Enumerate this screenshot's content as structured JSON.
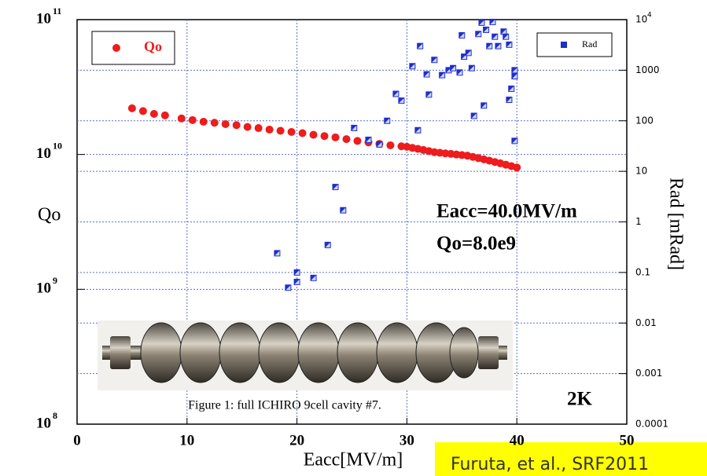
{
  "chart_data": {
    "type": "scatter",
    "xlabel": "Eacc[MV/m]",
    "ylabel": "Qo",
    "y2label": "Rad [mRad]",
    "caption": "Figure 1: full ICHIRO 9cell cavity #7.",
    "annotations": [
      "Eacc=40.0MV/m",
      "Qo=8.0e9",
      "2K"
    ],
    "source": "Furuta, et al., SRF2011",
    "xlim": [
      0,
      50
    ],
    "xticks": [
      0,
      10,
      20,
      30,
      40,
      50
    ],
    "ylim": [
      100000000,
      100000000000
    ],
    "ylog": true,
    "yticks": [
      {
        "value": 100000000,
        "label": "10",
        "sup": "8"
      },
      {
        "value": 1000000000,
        "label": "10",
        "sup": "9"
      },
      {
        "value": 10000000000,
        "label": "10",
        "sup": "10"
      },
      {
        "value": 100000000000,
        "label": "10",
        "sup": "11"
      }
    ],
    "y2lim": [
      0.0001,
      10000
    ],
    "y2log": true,
    "y2ticks": [
      0.0001,
      0.001,
      0.01,
      0.1,
      1,
      10,
      100,
      1000,
      {
        "value": 10000,
        "label": "10",
        "sup": "4"
      }
    ],
    "grid": true,
    "series": [
      {
        "name": "Qo",
        "color": "#ee1c1c",
        "marker": "circle",
        "x": [
          5,
          6,
          7,
          8,
          9.5,
          10.5,
          11.5,
          12.5,
          13.5,
          14.5,
          15.5,
          16.5,
          17.5,
          18.5,
          19.5,
          20.5,
          21.5,
          22.5,
          23.5,
          24.5,
          25.5,
          26.5,
          27.5,
          28.5,
          29.5,
          30,
          30.5,
          31,
          31.5,
          32,
          32.5,
          33,
          33.5,
          34,
          34.5,
          35,
          35.5,
          36,
          36.5,
          37,
          37.5,
          38,
          38.5,
          39,
          39.5,
          40
        ],
        "values": [
          22000000000,
          21000000000,
          20000000000,
          19500000000,
          18500000000,
          18000000000,
          17500000000,
          17200000000,
          16800000000,
          16500000000,
          16000000000,
          15700000000,
          15300000000,
          15000000000,
          14700000000,
          14400000000,
          14000000000,
          13700000000,
          13400000000,
          13000000000,
          12600000000,
          12300000000,
          12000000000,
          11700000000,
          11500000000,
          11400000000,
          11200000000,
          11000000000,
          10800000000,
          10600000000,
          10400000000,
          10300000000,
          10200000000,
          10100000000,
          10000000000,
          9900000000,
          9800000000,
          9600000000,
          9400000000,
          9200000000,
          9000000000,
          8800000000,
          8600000000,
          8400000000,
          8200000000,
          8000000000
        ]
      },
      {
        "name": "Rad",
        "color": "#1f2fc8",
        "marker": "square",
        "axis": "y2",
        "x": [
          18.2,
          19.2,
          20,
          20,
          21.5,
          22.8,
          23.5,
          24.2,
          25.2,
          26.5,
          27.5,
          28.2,
          29,
          29.5,
          30.5,
          31,
          31.2,
          31.8,
          32,
          32.5,
          33.2,
          33.8,
          34.2,
          34.8,
          35,
          35.2,
          35.6,
          35.9,
          36.1,
          36.5,
          36.8,
          37,
          37.2,
          37.5,
          37.8,
          38,
          38.3,
          38.8,
          39,
          39.3,
          39.3,
          39.5,
          39.8,
          39.8,
          39.8
        ],
        "values": [
          0.24,
          0.05,
          0.1,
          0.065,
          0.078,
          0.35,
          4.9,
          1.7,
          72,
          42,
          34,
          100,
          340,
          250,
          1200,
          65,
          3000,
          830,
          330,
          1600,
          800,
          1000,
          1100,
          900,
          4900,
          1850,
          2200,
          1100,
          125,
          5200,
          8700,
          200,
          6300,
          3000,
          9000,
          4600,
          3000,
          5800,
          4600,
          3200,
          260,
          430,
          760,
          1000,
          40
        ]
      }
    ]
  }
}
